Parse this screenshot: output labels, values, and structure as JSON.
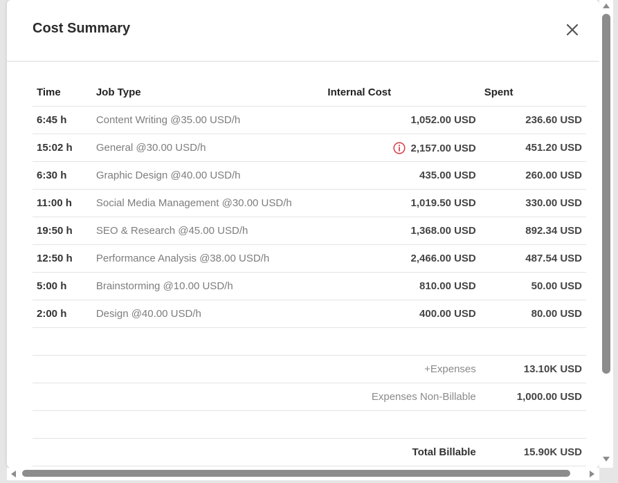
{
  "modal": {
    "title": "Cost Summary"
  },
  "table": {
    "headers": {
      "time": "Time",
      "job_type": "Job Type",
      "internal_cost": "Internal Cost",
      "spent": "Spent"
    },
    "rows": [
      {
        "time": "6:45 h",
        "job_type": "Content Writing @35.00 USD/h",
        "internal_cost": "1,052.00 USD",
        "spent": "236.60 USD",
        "warning": false
      },
      {
        "time": "15:02 h",
        "job_type": "General @30.00 USD/h",
        "internal_cost": "2,157.00 USD",
        "spent": "451.20 USD",
        "warning": true
      },
      {
        "time": "6:30 h",
        "job_type": "Graphic Design @40.00 USD/h",
        "internal_cost": "435.00 USD",
        "spent": "260.00 USD",
        "warning": false
      },
      {
        "time": "11:00 h",
        "job_type": "Social Media Management @30.00 USD/h",
        "internal_cost": "1,019.50 USD",
        "spent": "330.00 USD",
        "warning": false
      },
      {
        "time": "19:50 h",
        "job_type": "SEO & Research @45.00 USD/h",
        "internal_cost": "1,368.00 USD",
        "spent": "892.34 USD",
        "warning": false
      },
      {
        "time": "12:50 h",
        "job_type": "Performance Analysis @38.00 USD/h",
        "internal_cost": "2,466.00 USD",
        "spent": "487.54 USD",
        "warning": false
      },
      {
        "time": "5:00 h",
        "job_type": "Brainstorming @10.00 USD/h",
        "internal_cost": "810.00 USD",
        "spent": "50.00 USD",
        "warning": false
      },
      {
        "time": "2:00 h",
        "job_type": "Design @40.00 USD/h",
        "internal_cost": "400.00 USD",
        "spent": "80.00 USD",
        "warning": false
      }
    ]
  },
  "summary": {
    "expenses_label": "+Expenses",
    "expenses_value": "13.10K USD",
    "non_billable_label": "Expenses Non-Billable",
    "non_billable_value": "1,000.00 USD",
    "total_label": "Total Billable",
    "total_value": "15.90K USD"
  },
  "icons": {
    "close": "close-icon",
    "warning": "info-circle-icon",
    "warning_color": "#d9434e"
  }
}
